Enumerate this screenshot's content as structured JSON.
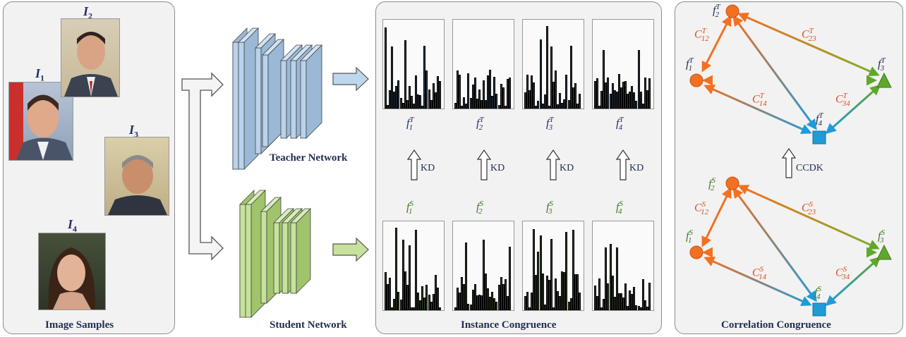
{
  "panels": {
    "image_samples": "Image Samples",
    "instance_congruence": "Instance Congruence",
    "correlation_congruence": "Correlation Congruence"
  },
  "images": [
    {
      "letter": "I",
      "index": "1"
    },
    {
      "letter": "I",
      "index": "2"
    },
    {
      "letter": "I",
      "index": "3"
    },
    {
      "letter": "I",
      "index": "4"
    }
  ],
  "networks": {
    "teacher": "Teacher Network",
    "student": "Student Network"
  },
  "features": {
    "teacher": [
      {
        "base": "f",
        "sub": "1",
        "sup": "T"
      },
      {
        "base": "f",
        "sub": "2",
        "sup": "T"
      },
      {
        "base": "f",
        "sub": "3",
        "sup": "T"
      },
      {
        "base": "f",
        "sub": "4",
        "sup": "T"
      }
    ],
    "student": [
      {
        "base": "f",
        "sub": "1",
        "sup": "S"
      },
      {
        "base": "f",
        "sub": "2",
        "sup": "S"
      },
      {
        "base": "f",
        "sub": "3",
        "sup": "S"
      },
      {
        "base": "f",
        "sub": "4",
        "sup": "S"
      }
    ]
  },
  "kd_label": "KD",
  "ccdk_label": "CCDK",
  "correlations": {
    "teacher": [
      {
        "base": "C",
        "sub": "12",
        "sup": "T"
      },
      {
        "base": "C",
        "sub": "23",
        "sup": "T"
      },
      {
        "base": "C",
        "sub": "14",
        "sup": "T"
      },
      {
        "base": "C",
        "sub": "34",
        "sup": "T"
      }
    ],
    "student": [
      {
        "base": "C",
        "sub": "12",
        "sup": "S"
      },
      {
        "base": "C",
        "sub": "23",
        "sup": "S"
      },
      {
        "base": "C",
        "sub": "14",
        "sup": "S"
      },
      {
        "base": "C",
        "sub": "34",
        "sup": "S"
      }
    ]
  },
  "colors": {
    "teacher_block": "#b9d3ec",
    "student_block": "#c6e29c",
    "teacher_feature_text": "#1f2d6b",
    "student_feature_text": "#3f7a1f",
    "correlation_text": "#d9531e",
    "node_orange": "#f37021",
    "node_green": "#5fa82b",
    "node_blue": "#1f9bd7"
  }
}
